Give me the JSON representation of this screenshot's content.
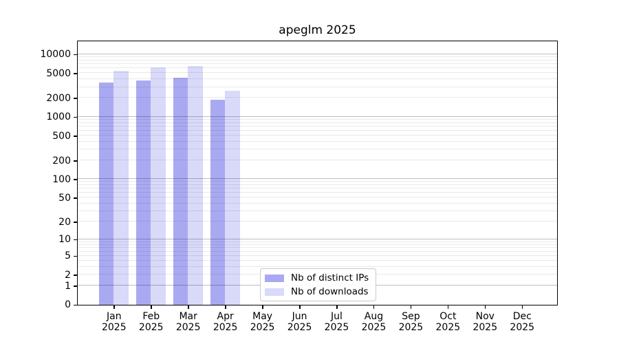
{
  "title": "apeglm 2025",
  "chart_data": {
    "type": "bar",
    "title": "apeglm 2025",
    "categories": [
      "Jan",
      "Feb",
      "Mar",
      "Apr",
      "May",
      "Jun",
      "Jul",
      "Aug",
      "Sep",
      "Oct",
      "Nov",
      "Dec"
    ],
    "x_tick_second_line": "2025",
    "series": [
      {
        "name": "Nb of distinct IPs",
        "color": "#a9a9f2",
        "values": [
          3520,
          3800,
          4250,
          1860,
          null,
          null,
          null,
          null,
          null,
          null,
          null,
          null
        ]
      },
      {
        "name": "Nb of downloads",
        "color": "#d9d9fa",
        "values": [
          5470,
          6210,
          6470,
          2630,
          null,
          null,
          null,
          null,
          null,
          null,
          null,
          null
        ]
      }
    ],
    "yticks": [
      0,
      1,
      2,
      5,
      10,
      20,
      50,
      100,
      200,
      500,
      1000,
      2000,
      5000,
      10000
    ],
    "ylim": [
      0,
      16380
    ],
    "scale": "log1p",
    "grid": "both",
    "grid_major_color": "#bebebe",
    "grid_minor_color": "#e9e9e9",
    "legend_position": "lower center",
    "xlabel": "",
    "ylabel": ""
  }
}
